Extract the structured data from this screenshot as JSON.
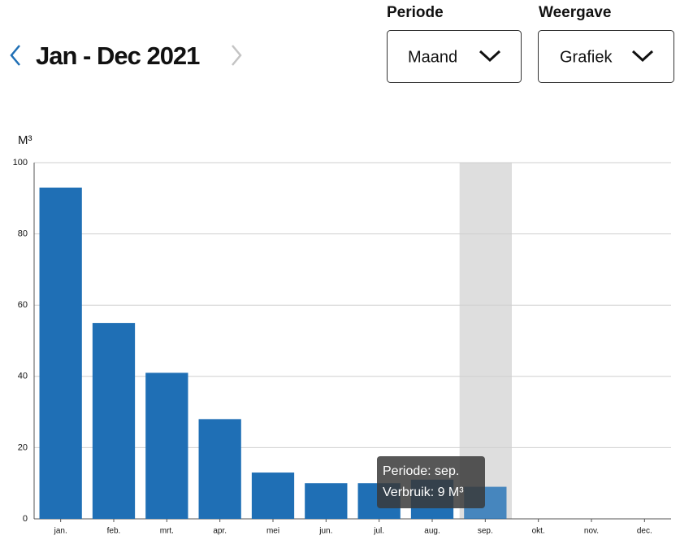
{
  "header": {
    "title": "Jan - Dec 2021"
  },
  "controls": [
    {
      "label": "Periode",
      "value": "Maand"
    },
    {
      "label": "Weergave",
      "value": "Grafiek"
    }
  ],
  "chart_data": {
    "type": "bar",
    "y_label": "M³",
    "categories": [
      "jan.",
      "feb.",
      "mrt.",
      "apr.",
      "mei",
      "jun.",
      "jul.",
      "aug.",
      "sep.",
      "okt.",
      "nov.",
      "dec."
    ],
    "values": [
      93,
      55,
      41,
      28,
      13,
      10,
      10,
      11,
      9,
      null,
      null,
      null
    ],
    "color": "#1f6fb5",
    "ylim": [
      0,
      100
    ],
    "yticks": [
      0,
      20,
      40,
      60,
      80,
      100
    ],
    "grid": true,
    "highlight_index": 8,
    "tooltip": {
      "lines": [
        "Periode: sep.",
        "Verbruik: 9 M³"
      ]
    }
  }
}
